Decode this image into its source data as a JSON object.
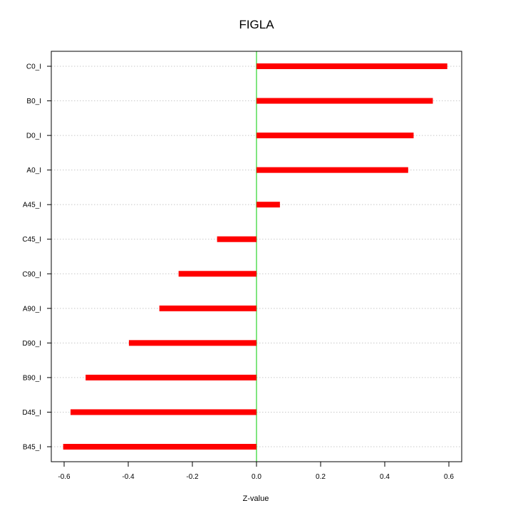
{
  "chart_data": {
    "type": "bar",
    "orientation": "horizontal",
    "title": "FIGLA",
    "xlabel": "Z-value",
    "ylabel": "",
    "xlim": [
      -0.64,
      0.64
    ],
    "x_ticks": [
      -0.6,
      -0.4,
      -0.2,
      0.0,
      0.2,
      0.4,
      0.6
    ],
    "x_tick_labels": [
      "-0.6",
      "-0.4",
      "-0.2",
      "0.0",
      "0.2",
      "0.4",
      "0.6"
    ],
    "categories": [
      "C0_I",
      "B0_I",
      "D0_I",
      "A0_I",
      "A45_I",
      "C45_I",
      "C90_I",
      "A90_I",
      "D90_I",
      "B90_I",
      "D45_I",
      "B45_I"
    ],
    "values": [
      0.595,
      0.55,
      0.49,
      0.473,
      0.073,
      -0.123,
      -0.243,
      -0.303,
      -0.398,
      -0.533,
      -0.58,
      -0.603
    ],
    "bar_color": "#ff0000",
    "zero_line_color": "#00cc00",
    "grid": "horizontal dotted",
    "legend": "none"
  }
}
